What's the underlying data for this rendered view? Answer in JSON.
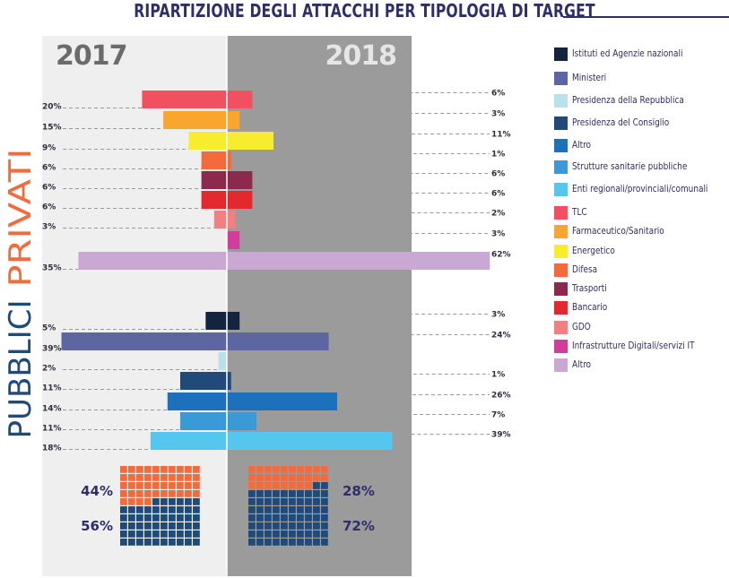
{
  "chart_data": {
    "type": "bar",
    "title": "RIPARTIZIONE DEGLI ATTACCHI PER TIPOLOGIA DI TARGET",
    "years": [
      "2017",
      "2018"
    ],
    "groups": [
      "PRIVATI",
      "PUBBLICI"
    ],
    "xlim": [
      0,
      62
    ],
    "private": {
      "categories": [
        "TLC",
        "Farmaceutico/Sanitario",
        "Energetico",
        "Difesa",
        "Trasporti",
        "Bancario",
        "GDO",
        "Infrastrutture Digitali/servizi IT",
        "Altro"
      ],
      "colors": [
        "#f05060",
        "#f9a62e",
        "#f7ec2e",
        "#f36b3c",
        "#8c2a4e",
        "#e3282e",
        "#f28080",
        "#d23c9b",
        "#c9a8d3"
      ],
      "values_2017": [
        20,
        15,
        9,
        6,
        6,
        6,
        3,
        null,
        35
      ],
      "values_2018": [
        6,
        3,
        11,
        1,
        6,
        6,
        2,
        3,
        62
      ],
      "labels_2017": [
        "20%",
        "15%",
        "9%",
        "6%",
        "6%",
        "6%",
        "3%",
        "",
        "35%"
      ],
      "labels_2018": [
        "6%",
        "3%",
        "11%",
        "1%",
        "6%",
        "6%",
        "2%",
        "3%",
        "62%"
      ]
    },
    "public": {
      "categories": [
        "Istituti ed Agenzie nazionali",
        "Ministeri",
        "Presidenza della Repubblica",
        "Presidenza del Consiglio",
        "Altro",
        "Strutture sanitarie pubbliche",
        "Enti regionali/provinciali/comunali"
      ],
      "colors": [
        "#14243f",
        "#5d65a2",
        "#b8e1ec",
        "#1f4a7a",
        "#1d70bb",
        "#3a9ad7",
        "#55c7ef"
      ],
      "values_2017": [
        5,
        39,
        2,
        11,
        14,
        11,
        18
      ],
      "values_2018": [
        3,
        24,
        0,
        1,
        26,
        7,
        39
      ],
      "labels_2017": [
        "5%",
        "39%",
        "2%",
        "11%",
        "14%",
        "11%",
        "18%"
      ],
      "labels_2018": [
        "3%",
        "24%",
        "",
        "1%",
        "26%",
        "7%",
        "39%"
      ]
    },
    "share": {
      "private_2017": 44,
      "public_2017": 56,
      "private_2018": 28,
      "public_2018": 72,
      "private_2017_label": "44%",
      "public_2017_label": "56%",
      "private_2018_label": "28%",
      "public_2018_label": "72%",
      "private_color": "#f36b3c",
      "public_color": "#1f4a7a"
    },
    "legend": [
      {
        "label": "Istituti ed Agenzie nazionali",
        "color": "#14243f"
      },
      {
        "label": "Ministeri",
        "color": "#5d65a2"
      },
      {
        "label": "Presidenza della Repubblica",
        "color": "#b8e1ec"
      },
      {
        "label": "Presidenza del Consiglio",
        "color": "#1f4a7a"
      },
      {
        "label": "Altro",
        "color": "#1d70bb"
      },
      {
        "label": "Strutture sanitarie pubbliche",
        "color": "#3a9ad7"
      },
      {
        "label": "Enti regionali/provinciali/comunali",
        "color": "#55c7ef"
      },
      {
        "label": "TLC",
        "color": "#f05060"
      },
      {
        "label": "Farmaceutico/Sanitario",
        "color": "#f9a62e"
      },
      {
        "label": "Energetico",
        "color": "#f7ec2e"
      },
      {
        "label": "Difesa",
        "color": "#f36b3c"
      },
      {
        "label": "Trasporti",
        "color": "#8c2a4e"
      },
      {
        "label": "Bancario",
        "color": "#e3282e"
      },
      {
        "label": "GDO",
        "color": "#f28080"
      },
      {
        "label": "Infrastrutture Digitali/servizi IT",
        "color": "#d23c9b"
      },
      {
        "label": "Altro",
        "color": "#c9a8d3"
      }
    ]
  }
}
